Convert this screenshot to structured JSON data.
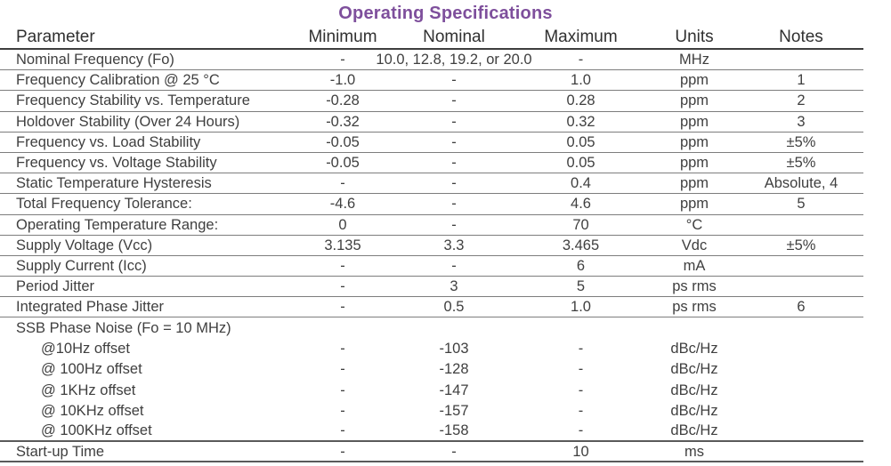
{
  "title": "Operating Specifications",
  "colors": {
    "title": "#7e4f9c",
    "text": "#3f3f3f",
    "header_line": "#3e3e3e",
    "row_line": "#7d7d7d"
  },
  "columns": {
    "parameter": "Parameter",
    "minimum": "Minimum",
    "nominal": "Nominal",
    "maximum": "Maximum",
    "units": "Units",
    "notes": "Notes"
  },
  "rows": [
    {
      "parameter": "Nominal Frequency (Fo)",
      "minimum": "-",
      "nominal": "10.0, 12.8, 19.2, or 20.0",
      "maximum": "-",
      "units": "MHz",
      "notes": "",
      "border": "normal",
      "indent": false
    },
    {
      "parameter": "Frequency Calibration @ 25 °C",
      "minimum": "-1.0",
      "nominal": "-",
      "maximum": "1.0",
      "units": "ppm",
      "notes": "1",
      "border": "normal",
      "indent": false
    },
    {
      "parameter": "Frequency Stability vs. Temperature",
      "minimum": "-0.28",
      "nominal": "-",
      "maximum": "0.28",
      "units": "ppm",
      "notes": "2",
      "border": "normal",
      "indent": false
    },
    {
      "parameter": "Holdover Stability (Over 24 Hours)",
      "minimum": "-0.32",
      "nominal": "-",
      "maximum": "0.32",
      "units": "ppm",
      "notes": "3",
      "border": "normal",
      "indent": false
    },
    {
      "parameter": "Frequency vs. Load Stability",
      "minimum": "-0.05",
      "nominal": "-",
      "maximum": "0.05",
      "units": "ppm",
      "notes": "±5%",
      "border": "normal",
      "indent": false
    },
    {
      "parameter": "Frequency vs. Voltage Stability",
      "minimum": "-0.05",
      "nominal": "-",
      "maximum": "0.05",
      "units": "ppm",
      "notes": "±5%",
      "border": "normal",
      "indent": false
    },
    {
      "parameter": "Static Temperature Hysteresis",
      "minimum": "-",
      "nominal": "-",
      "maximum": "0.4",
      "units": "ppm",
      "notes": "Absolute, 4",
      "border": "normal",
      "indent": false
    },
    {
      "parameter": "Total Frequency Tolerance:",
      "minimum": "-4.6",
      "nominal": "-",
      "maximum": "4.6",
      "units": "ppm",
      "notes": "5",
      "border": "normal",
      "indent": false
    },
    {
      "parameter": "Operating Temperature Range:",
      "minimum": "0",
      "nominal": "-",
      "maximum": "70",
      "units": "°C",
      "notes": "",
      "border": "normal",
      "indent": false
    },
    {
      "parameter": "Supply Voltage (Vcc)",
      "minimum": "3.135",
      "nominal": "3.3",
      "maximum": "3.465",
      "units": "Vdc",
      "notes": "±5%",
      "border": "normal",
      "indent": false
    },
    {
      "parameter": "Supply Current (Icc)",
      "minimum": "-",
      "nominal": "-",
      "maximum": "6",
      "units": "mA",
      "notes": "",
      "border": "normal",
      "indent": false
    },
    {
      "parameter": "Period Jitter",
      "minimum": "-",
      "nominal": "3",
      "maximum": "5",
      "units": "ps rms",
      "notes": "",
      "border": "normal",
      "indent": false
    },
    {
      "parameter": "Integrated Phase Jitter",
      "minimum": "-",
      "nominal": "0.5",
      "maximum": "1.0",
      "units": "ps rms",
      "notes": "6",
      "border": "normal",
      "indent": false
    },
    {
      "parameter": "SSB Phase Noise (Fo = 10 MHz)",
      "minimum": "",
      "nominal": "",
      "maximum": "",
      "units": "",
      "notes": "",
      "border": "none",
      "indent": false
    },
    {
      "parameter": "@10Hz offset",
      "minimum": "-",
      "nominal": "-103",
      "maximum": "-",
      "units": "dBc/Hz",
      "notes": "",
      "border": "none",
      "indent": true
    },
    {
      "parameter": "@ 100Hz offset",
      "minimum": "-",
      "nominal": "-128",
      "maximum": "-",
      "units": "dBc/Hz",
      "notes": "",
      "border": "none",
      "indent": true
    },
    {
      "parameter": "@ 1KHz offset",
      "minimum": "-",
      "nominal": "-147",
      "maximum": "-",
      "units": "dBc/Hz",
      "notes": "",
      "border": "none",
      "indent": true
    },
    {
      "parameter": "@ 10KHz offset",
      "minimum": "-",
      "nominal": "-157",
      "maximum": "-",
      "units": "dBc/Hz",
      "notes": "",
      "border": "none",
      "indent": true
    },
    {
      "parameter": "@ 100KHz offset",
      "minimum": "-",
      "nominal": "-158",
      "maximum": "-",
      "units": "dBc/Hz",
      "notes": "",
      "border": "heavy",
      "indent": true
    },
    {
      "parameter": "Start-up Time",
      "minimum": "-",
      "nominal": "-",
      "maximum": "10",
      "units": "ms",
      "notes": "",
      "border": "heavy",
      "indent": false
    }
  ]
}
